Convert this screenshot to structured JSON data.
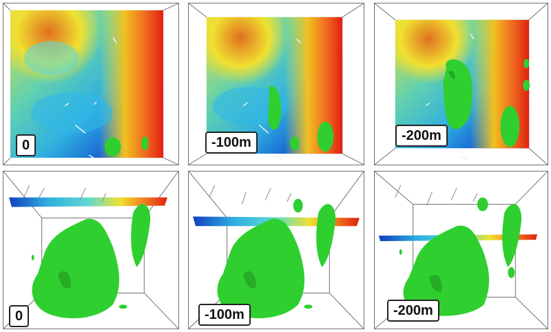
{
  "panels": [
    {
      "id": "top-0",
      "label": "0"
    },
    {
      "id": "top-100",
      "label": "-100m"
    },
    {
      "id": "top-200",
      "label": "-200m"
    },
    {
      "id": "bottom-0",
      "label": "0"
    },
    {
      "id": "bottom-100",
      "label": "-100m"
    },
    {
      "id": "bottom-200",
      "label": "-200m"
    }
  ],
  "colors": {
    "frame": "#6e6e6e",
    "isosurface": "#2fcf2f",
    "isosurface_dark": "#1f8f1f",
    "ramp": [
      "#1030c0",
      "#20a0e0",
      "#40d0d0",
      "#a0e060",
      "#f0f030",
      "#f0a020",
      "#e02010"
    ]
  }
}
